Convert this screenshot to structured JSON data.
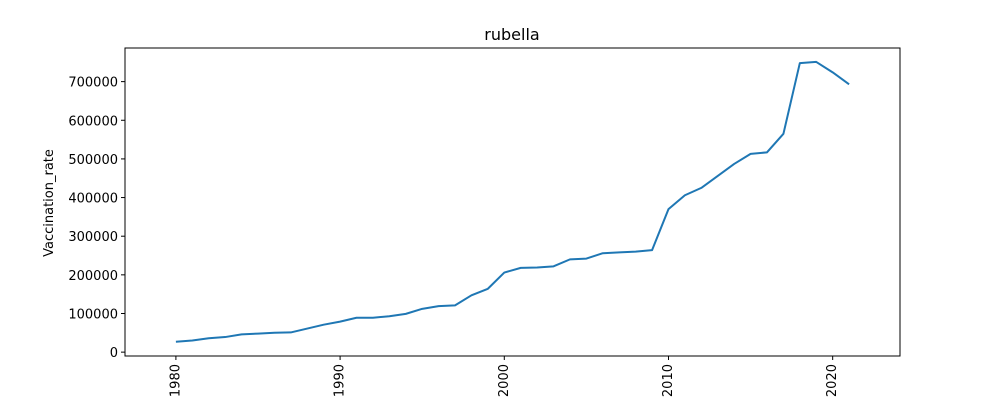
{
  "chart_data": {
    "type": "line",
    "title": "rubella",
    "xlabel": "",
    "ylabel": "Vaccination_rate",
    "xlim": [
      1976.9,
      2024.1
    ],
    "ylim": [
      -10000,
      787000
    ],
    "xticks": [
      1980,
      1990,
      2000,
      2010,
      2020
    ],
    "yticks": [
      0,
      100000,
      200000,
      300000,
      400000,
      500000,
      600000,
      700000
    ],
    "grid": false,
    "legend": "none",
    "series": [
      {
        "color": "#1f77b4",
        "x": [
          1980,
          1981,
          1982,
          1983,
          1984,
          1985,
          1986,
          1987,
          1988,
          1989,
          1990,
          1991,
          1992,
          1993,
          1994,
          1995,
          1996,
          1997,
          1998,
          1999,
          2000,
          2001,
          2002,
          2003,
          2004,
          2005,
          2006,
          2007,
          2008,
          2009,
          2010,
          2011,
          2012,
          2013,
          2014,
          2015,
          2016,
          2017,
          2018,
          2019,
          2020,
          2021
        ],
        "y": [
          27000,
          30000,
          36000,
          39000,
          46000,
          48000,
          50000,
          51000,
          61000,
          71000,
          79000,
          89000,
          89000,
          93000,
          99000,
          112000,
          119000,
          121000,
          147000,
          164000,
          206000,
          218000,
          219000,
          222000,
          240000,
          242000,
          256000,
          258000,
          260000,
          264000,
          370000,
          406000,
          425000,
          456000,
          487000,
          513000,
          517000,
          565000,
          748000,
          751000,
          724000,
          693000
        ]
      }
    ]
  }
}
